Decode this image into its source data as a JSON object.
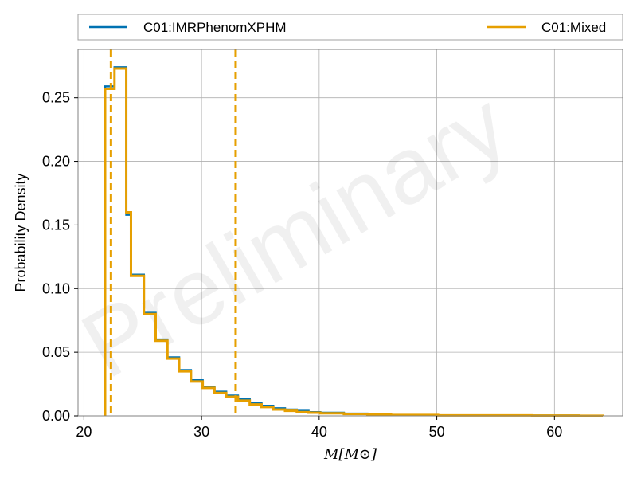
{
  "chart_data": {
    "type": "histogram",
    "xlabel": "M[M⊙]",
    "ylabel": "Probability Density",
    "xlim": [
      19.5,
      65.8
    ],
    "ylim": [
      0.0,
      0.288
    ],
    "xticks": [
      20,
      30,
      40,
      50,
      60
    ],
    "xtick_labels": [
      "20",
      "30",
      "40",
      "50",
      "60"
    ],
    "yticks": [
      0.0,
      0.05,
      0.1,
      0.15,
      0.2,
      0.25
    ],
    "ytick_labels": [
      "0.00",
      "0.05",
      "0.10",
      "0.15",
      "0.20",
      "0.25"
    ],
    "grid": true,
    "legend_placement": "top, above plot",
    "watermark": "Preliminary",
    "bin_edges": [
      21.8,
      22.6,
      23.6,
      24.0,
      25.1,
      26.1,
      27.1,
      28.1,
      29.1,
      30.1,
      31.1,
      32.1,
      33.1,
      34.1,
      35.1,
      36.1,
      37.1,
      38.1,
      39.1,
      40.1,
      42.1,
      44.1,
      46.1,
      50.1,
      58.1,
      62.1,
      64.1
    ],
    "series": [
      {
        "name": "C01:IMRPhenomXPHM",
        "color": "#0072b2",
        "values": [
          0.259,
          0.274,
          0.158,
          0.111,
          0.081,
          0.06,
          0.046,
          0.036,
          0.028,
          0.023,
          0.019,
          0.016,
          0.013,
          0.01,
          0.008,
          0.006,
          0.005,
          0.004,
          0.003,
          0.0025,
          0.0018,
          0.0012,
          0.0008,
          0.0005,
          0.0003,
          0.0001
        ],
        "interval_lines": [],
        "line_style": "solid"
      },
      {
        "name": "C01:Mixed",
        "color": "#e69f00",
        "values": [
          0.257,
          0.273,
          0.16,
          0.11,
          0.08,
          0.059,
          0.045,
          0.035,
          0.027,
          0.022,
          0.018,
          0.015,
          0.012,
          0.009,
          0.007,
          0.005,
          0.004,
          0.003,
          0.0025,
          0.002,
          0.0015,
          0.001,
          0.0007,
          0.0004,
          0.0002,
          0.0001
        ],
        "interval_lines": [
          22.3,
          32.9
        ],
        "line_style": "solid"
      }
    ]
  }
}
